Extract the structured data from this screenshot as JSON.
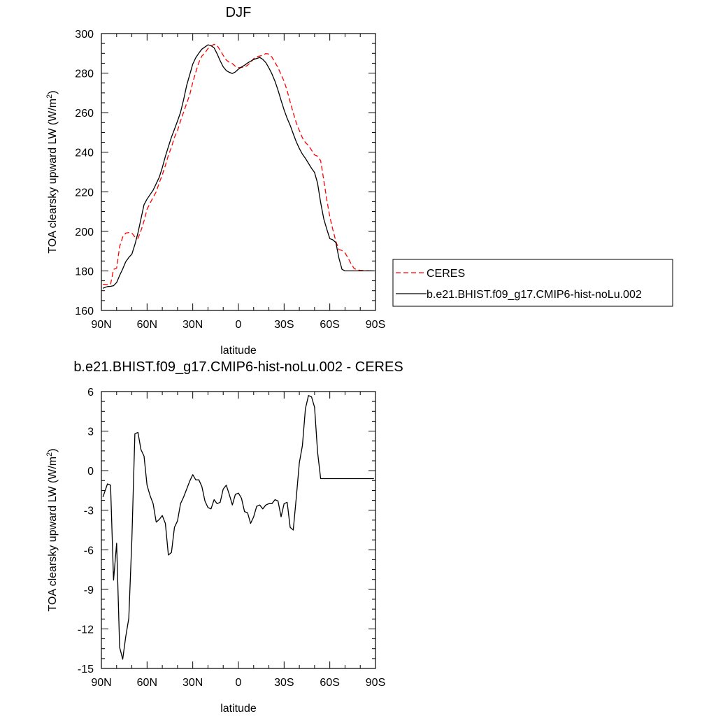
{
  "chart_data": [
    {
      "type": "line",
      "title": "DJF",
      "xlabel": "latitude",
      "ylabel": "TOA clearsky upward LW (W/m",
      "ylabel_sup": "2",
      "ylabel_end": ")",
      "xlim": [
        90,
        -90
      ],
      "ylim": [
        160,
        300
      ],
      "x_ticks": [
        {
          "value": 90,
          "label": "90N"
        },
        {
          "value": 60,
          "label": "60N"
        },
        {
          "value": 30,
          "label": "30N"
        },
        {
          "value": 0,
          "label": "0"
        },
        {
          "value": -30,
          "label": "30S"
        },
        {
          "value": -60,
          "label": "60S"
        },
        {
          "value": -90,
          "label": "90S"
        }
      ],
      "y_ticks": [
        160,
        180,
        200,
        220,
        240,
        260,
        280,
        300
      ],
      "grid": false,
      "legend": "right",
      "series": [
        {
          "name": "CERES",
          "color": "#ff0000",
          "dash": "dashed",
          "x": [
            89,
            86,
            84,
            82,
            80,
            78,
            76,
            74,
            72,
            70,
            68,
            66,
            64,
            62,
            60,
            58,
            56,
            54,
            52,
            50,
            48,
            46,
            44,
            42,
            40,
            38,
            36,
            34,
            32,
            30,
            28,
            26,
            24,
            22,
            20,
            18,
            16,
            14,
            12,
            10,
            8,
            6,
            4,
            2,
            0,
            -2,
            -4,
            -6,
            -8,
            -10,
            -12,
            -14,
            -16,
            -18,
            -20,
            -22,
            -24,
            -26,
            -28,
            -30,
            -32,
            -34,
            -36,
            -38,
            -40,
            -42,
            -44,
            -46,
            -48,
            -50,
            -52,
            -54,
            -56,
            -58,
            -60,
            -62,
            -64,
            -66,
            -68,
            -70,
            -72,
            -74,
            -76,
            -78,
            -80,
            -82,
            -84,
            -86,
            -89
          ],
          "y": [
            173.2,
            173.1,
            173.2,
            180.8,
            181.4,
            192.3,
            197.1,
            199.1,
            199.4,
            199.1,
            197.2,
            196.4,
            200.3,
            205.3,
            211.2,
            214.3,
            217.2,
            220.0,
            224.6,
            228.5,
            233.3,
            238.4,
            242.6,
            247.5,
            251.0,
            255.8,
            260.3,
            264.8,
            269.0,
            275.3,
            280.5,
            285.4,
            288.6,
            290.2,
            292.4,
            293.7,
            294.6,
            294.0,
            291.5,
            289.0,
            286.6,
            285.5,
            284.8,
            283.5,
            282.8,
            282.9,
            283.0,
            284.0,
            285.4,
            287.3,
            288.4,
            288.6,
            289.1,
            289.9,
            289.6,
            288.1,
            285.4,
            282.8,
            279.2,
            275.9,
            271.1,
            265.4,
            259.9,
            254.8,
            251.0,
            247.3,
            244.9,
            243.4,
            241.1,
            238.6,
            238.0,
            235.7,
            226.0,
            216.1,
            207.4,
            200.9,
            194.9,
            190.8,
            190.3,
            189.1,
            186.5,
            183.5,
            181.2,
            180.5,
            180.3,
            180.2,
            180.1,
            180.0,
            180.0
          ]
        },
        {
          "name": "b.e21.BHIST.f09_g17.CMIP6-hist-noLu.002",
          "color": "#000000",
          "dash": "solid",
          "x": [
            89,
            86,
            84,
            82,
            80,
            78,
            76,
            74,
            72,
            70,
            68,
            66,
            64,
            62,
            60,
            58,
            56,
            54,
            52,
            50,
            48,
            46,
            44,
            42,
            40,
            38,
            36,
            34,
            32,
            30,
            28,
            26,
            24,
            22,
            20,
            18,
            16,
            14,
            12,
            10,
            8,
            6,
            4,
            2,
            0,
            -2,
            -4,
            -6,
            -8,
            -10,
            -12,
            -14,
            -16,
            -18,
            -20,
            -22,
            -24,
            -26,
            -28,
            -30,
            -32,
            -34,
            -36,
            -38,
            -40,
            -42,
            -44,
            -46,
            -48,
            -50,
            -52,
            -54,
            -56,
            -58,
            -60,
            -62,
            -64,
            -66,
            -68,
            -70,
            -72,
            -74,
            -76,
            -78,
            -80,
            -82,
            -84,
            -86,
            -89
          ],
          "y": [
            171.2,
            172.1,
            172.2,
            172.5,
            174.1,
            177.7,
            181.0,
            184.6,
            186.8,
            188.5,
            193.3,
            199.2,
            206.3,
            213.5,
            216.3,
            218.6,
            220.8,
            224.1,
            227.4,
            232.2,
            237.9,
            242.8,
            247.6,
            251.6,
            255.8,
            260.2,
            266.6,
            273.8,
            279.1,
            284.6,
            287.8,
            290.1,
            292.1,
            293.2,
            294.3,
            293.9,
            292.8,
            289.8,
            286.2,
            283.2,
            281.3,
            280.4,
            279.8,
            280.6,
            282.0,
            283.1,
            284.0,
            285.1,
            286.0,
            286.9,
            287.4,
            287.9,
            287.0,
            285.3,
            282.6,
            279.6,
            275.9,
            271.4,
            266.2,
            261.4,
            257.1,
            253.6,
            249.3,
            245.2,
            241.9,
            239.0,
            236.9,
            234.4,
            231.9,
            229.7,
            224.3,
            214.5,
            206.4,
            201.2,
            196.3,
            195.7,
            194.3,
            186.5,
            180.8,
            180.0,
            180.0,
            180.0,
            180.0,
            180.0,
            180.0,
            180.0,
            180.0,
            180.0,
            180.0
          ]
        }
      ]
    },
    {
      "type": "line",
      "title": "b.e21.BHIST.f09_g17.CMIP6-hist-noLu.002 - CERES",
      "xlabel": "latitude",
      "ylabel": "TOA clearsky upward LW (W/m",
      "ylabel_sup": "2",
      "ylabel_end": ")",
      "xlim": [
        90,
        -90
      ],
      "ylim": [
        -15,
        6
      ],
      "x_ticks": [
        {
          "value": 90,
          "label": "90N"
        },
        {
          "value": 60,
          "label": "60N"
        },
        {
          "value": 30,
          "label": "30N"
        },
        {
          "value": 0,
          "label": "0"
        },
        {
          "value": -30,
          "label": "30S"
        },
        {
          "value": -60,
          "label": "60S"
        },
        {
          "value": -90,
          "label": "90S"
        }
      ],
      "y_ticks": [
        -15,
        -12,
        -9,
        -6,
        -3,
        0,
        3,
        6
      ],
      "grid": false,
      "series": [
        {
          "color": "#000000",
          "dash": "solid",
          "x": [
            89,
            86,
            84,
            82,
            80,
            78,
            76,
            74,
            72,
            70,
            68,
            66,
            64,
            62,
            60,
            58,
            56,
            54,
            52,
            50,
            48,
            46,
            44,
            42,
            40,
            38,
            36,
            34,
            32,
            30,
            28,
            26,
            24,
            22,
            20,
            18,
            16,
            14,
            12,
            10,
            8,
            6,
            4,
            2,
            0,
            -2,
            -4,
            -6,
            -8,
            -10,
            -12,
            -14,
            -16,
            -18,
            -20,
            -22,
            -24,
            -26,
            -28,
            -30,
            -32,
            -34,
            -36,
            -38,
            -40,
            -42,
            -44,
            -46,
            -48,
            -50,
            -52,
            -54,
            -56,
            -58,
            -60,
            -62,
            -64,
            -66,
            -68,
            -70,
            -72,
            -74,
            -76,
            -78,
            -80,
            -82,
            -84,
            -86,
            -89
          ],
          "y": [
            -2.0,
            -1.0,
            -1.1,
            -8.3,
            -5.5,
            -13.4,
            -14.3,
            -12.6,
            -11.2,
            -5.2,
            2.8,
            2.9,
            1.6,
            1.1,
            -1.1,
            -1.9,
            -2.5,
            -3.9,
            -3.7,
            -3.4,
            -4.0,
            -6.4,
            -6.2,
            -4.3,
            -3.8,
            -2.5,
            -2.0,
            -1.4,
            -0.8,
            -0.3,
            -0.7,
            -0.7,
            -1.2,
            -2.3,
            -2.8,
            -2.9,
            -2.2,
            -2.5,
            -2.4,
            -1.4,
            -1.1,
            -1.8,
            -2.6,
            -1.8,
            -1.7,
            -2.1,
            -3.1,
            -3.2,
            -4.0,
            -3.5,
            -2.7,
            -2.6,
            -2.9,
            -2.6,
            -2.5,
            -2.5,
            -2.2,
            -2.3,
            -3.5,
            -2.5,
            -2.4,
            -4.3,
            -4.5,
            -2.0,
            0.6,
            1.9,
            4.7,
            5.7,
            5.6,
            4.8,
            1.4,
            -0.6,
            -0.6,
            -0.6,
            -0.6,
            -0.6,
            -0.6,
            -0.6,
            -0.6,
            -0.6,
            -0.6,
            -0.6,
            -0.6,
            -0.6,
            -0.6,
            -0.6,
            -0.6,
            -0.6,
            -0.6
          ]
        }
      ]
    }
  ]
}
